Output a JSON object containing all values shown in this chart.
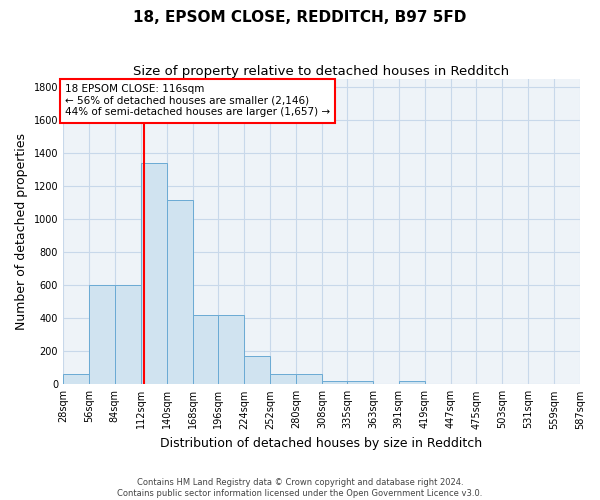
{
  "title": "18, EPSOM CLOSE, REDDITCH, B97 5FD",
  "subtitle": "Size of property relative to detached houses in Redditch",
  "xlabel": "Distribution of detached houses by size in Redditch",
  "ylabel": "Number of detached properties",
  "bin_edges": [
    28,
    56,
    84,
    112,
    140,
    168,
    196,
    224,
    252,
    280,
    308,
    335,
    363,
    391,
    419,
    447,
    475,
    503,
    531,
    559,
    587
  ],
  "bar_heights": [
    60,
    600,
    600,
    1340,
    1120,
    420,
    420,
    170,
    65,
    65,
    20,
    20,
    0,
    20,
    0,
    0,
    0,
    0,
    0,
    0
  ],
  "bar_color": "#d0e3f0",
  "bar_edge_color": "#6aaad4",
  "grid_color": "#c8d8ea",
  "bg_color": "#eef3f8",
  "red_line_x": 116,
  "annotation_lines": [
    "18 EPSOM CLOSE: 116sqm",
    "← 56% of detached houses are smaller (2,146)",
    "44% of semi-detached houses are larger (1,657) →"
  ],
  "annotation_box_color": "white",
  "annotation_box_edge": "red",
  "ylim": [
    0,
    1850
  ],
  "yticks": [
    0,
    200,
    400,
    600,
    800,
    1000,
    1200,
    1400,
    1600,
    1800
  ],
  "footer": "Contains HM Land Registry data © Crown copyright and database right 2024.\nContains public sector information licensed under the Open Government Licence v3.0.",
  "title_fontsize": 11,
  "subtitle_fontsize": 9.5,
  "ylabel_fontsize": 9,
  "xlabel_fontsize": 9,
  "tick_fontsize": 7,
  "footer_fontsize": 6
}
